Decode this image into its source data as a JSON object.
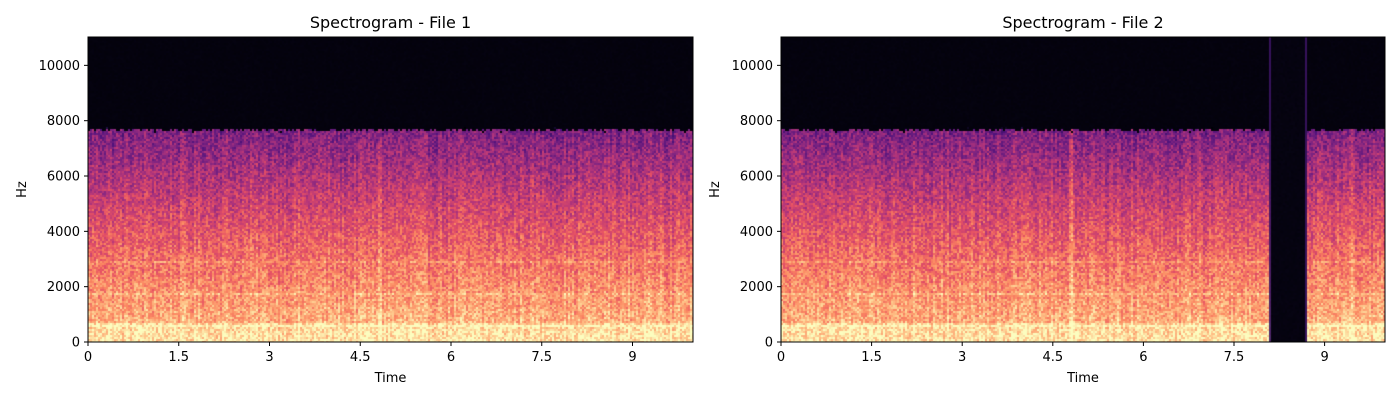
{
  "chart_data": [
    {
      "type": "heatmap",
      "kind": "spectrogram",
      "title": "Spectrogram - File 1",
      "xlabel": "Time",
      "ylabel": "Hz",
      "xlim": [
        0,
        10
      ],
      "ylim": [
        0,
        11025
      ],
      "xticks": [
        0,
        1.5,
        3,
        4.5,
        6,
        7.5,
        9
      ],
      "xtick_labels": [
        "0",
        "1.5",
        "3",
        "4.5",
        "6",
        "7.5",
        "9"
      ],
      "yticks": [
        0,
        2000,
        4000,
        6000,
        8000,
        10000
      ],
      "ytick_labels": [
        "0",
        "2000",
        "4000",
        "6000",
        "8000",
        "10000"
      ],
      "colormap": "magma",
      "energy_cutoff_hz": 7700,
      "silent_intervals": [],
      "transient_times": [
        4.8,
        9.45
      ]
    },
    {
      "type": "heatmap",
      "kind": "spectrogram",
      "title": "Spectrogram - File 2",
      "xlabel": "Time",
      "ylabel": "Hz",
      "xlim": [
        0,
        10
      ],
      "ylim": [
        0,
        11025
      ],
      "xticks": [
        0,
        1.5,
        3,
        4.5,
        6,
        7.5,
        9
      ],
      "xtick_labels": [
        "0",
        "1.5",
        "3",
        "4.5",
        "6",
        "7.5",
        "9"
      ],
      "yticks": [
        0,
        2000,
        4000,
        6000,
        8000,
        10000
      ],
      "ytick_labels": [
        "0",
        "2000",
        "4000",
        "6000",
        "8000",
        "10000"
      ],
      "colormap": "magma",
      "energy_cutoff_hz": 7700,
      "silent_intervals": [
        [
          8.1,
          8.7
        ]
      ],
      "transient_times": [
        4.8,
        9.45
      ]
    }
  ]
}
